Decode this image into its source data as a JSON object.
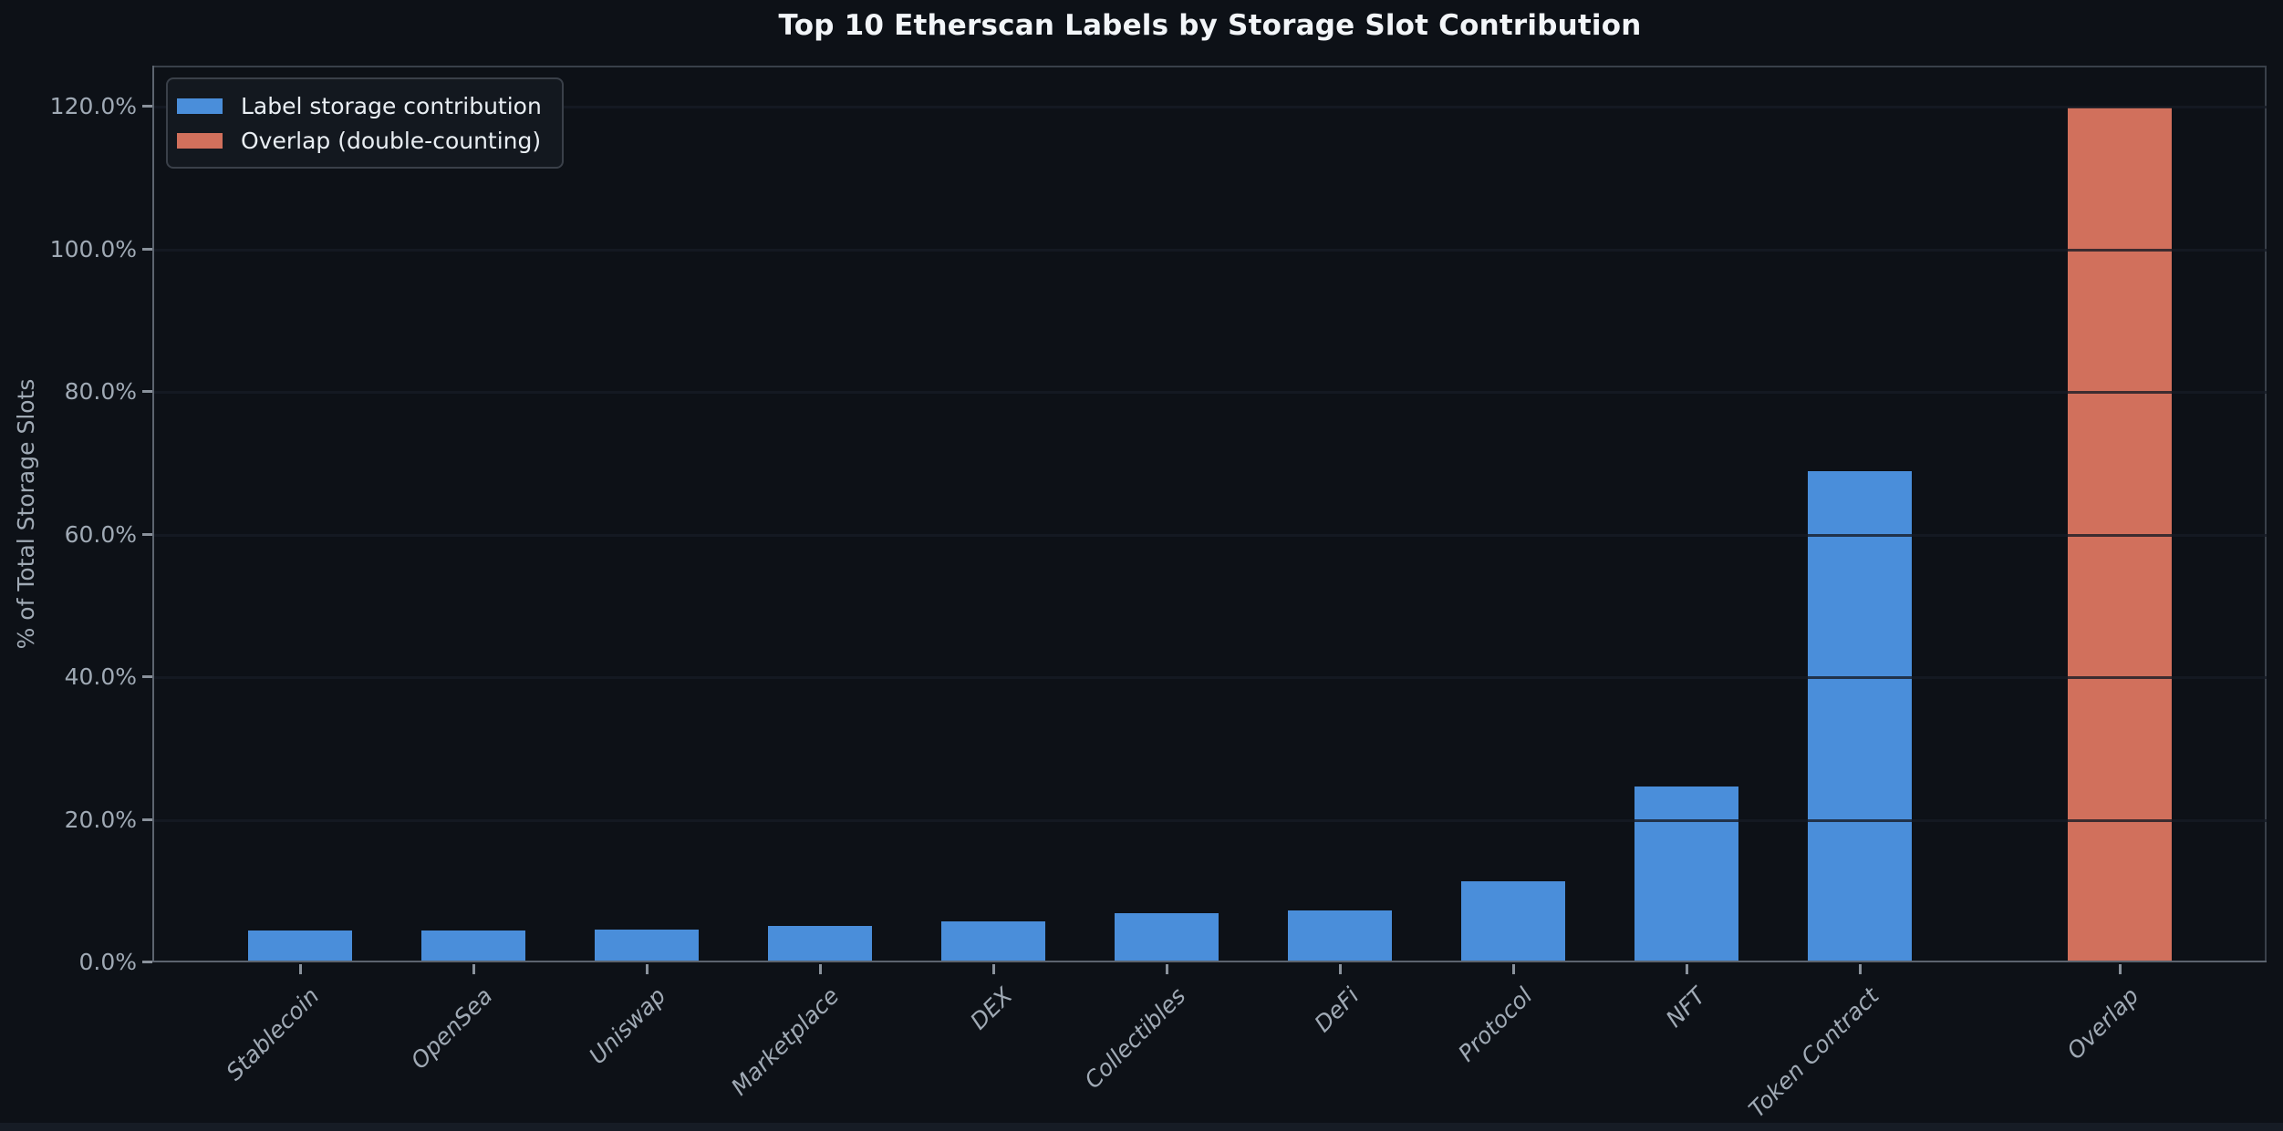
{
  "chart_data": {
    "type": "bar",
    "title": "Top 10 Etherscan Labels by Storage Slot Contribution",
    "xlabel": "",
    "ylabel": "% of Total Storage Slots",
    "ylim": [
      0,
      125.8
    ],
    "xlim": [
      -0.85,
      11.35
    ],
    "grid": true,
    "legend_position": "upper-left",
    "categories": [
      "Stablecoin",
      "OpenSea",
      "Uniswap",
      "Marketplace",
      "DEX",
      "Collectibles",
      "DeFi",
      "Protocol",
      "NFT",
      "Token Contract",
      "Overlap"
    ],
    "x_positions": [
      0,
      1,
      2,
      3,
      4,
      5,
      6,
      7,
      8,
      9,
      10.5
    ],
    "bar_width_units": 0.6,
    "yticks": [
      0,
      20,
      40,
      60,
      80,
      100,
      120
    ],
    "ytick_labels": [
      "0.0%",
      "20.0%",
      "40.0%",
      "60.0%",
      "80.0%",
      "100.0%",
      "120.0%"
    ],
    "series": [
      {
        "name": "Label storage contribution",
        "color": "#4a8eda",
        "values": [
          4.2,
          4.2,
          4.3,
          4.9,
          5.5,
          6.6,
          7.0,
          11.1,
          24.4,
          68.6,
          null
        ]
      },
      {
        "name": "Overlap (double-counting)",
        "color": "#d1705c",
        "values": [
          null,
          null,
          null,
          null,
          null,
          null,
          null,
          null,
          null,
          null,
          119.7
        ]
      }
    ]
  }
}
